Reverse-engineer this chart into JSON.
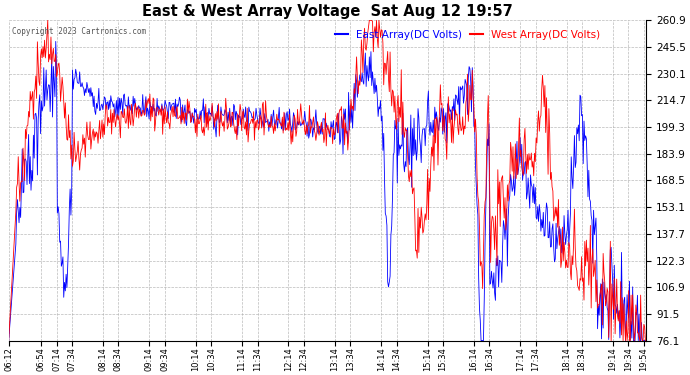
{
  "title": "East & West Array Voltage  Sat Aug 12 19:57",
  "copyright": "Copyright 2023 Cartronics.com",
  "legend_east": "East Array(DC Volts)",
  "legend_west": "West Array(DC Volts)",
  "east_color": "#0000ff",
  "west_color": "#ff0000",
  "background_color": "#ffffff",
  "plot_background": "#ffffff",
  "grid_color": "#aaaaaa",
  "y_ticks": [
    76.1,
    91.5,
    106.9,
    122.3,
    137.7,
    153.1,
    168.5,
    183.9,
    199.3,
    214.7,
    230.1,
    245.5,
    260.9
  ],
  "ylim": [
    76.1,
    260.9
  ],
  "x_tick_labels": [
    "06:12",
    "06:54",
    "07:14",
    "07:34",
    "08:14",
    "08:34",
    "09:14",
    "09:34",
    "10:14",
    "10:34",
    "11:14",
    "11:34",
    "12:14",
    "12:34",
    "13:14",
    "13:34",
    "14:14",
    "14:34",
    "15:14",
    "15:34",
    "16:14",
    "16:34",
    "17:14",
    "17:34",
    "18:14",
    "18:34",
    "19:14",
    "19:34",
    "19:54"
  ],
  "figsize": [
    6.9,
    3.75
  ],
  "dpi": 100
}
